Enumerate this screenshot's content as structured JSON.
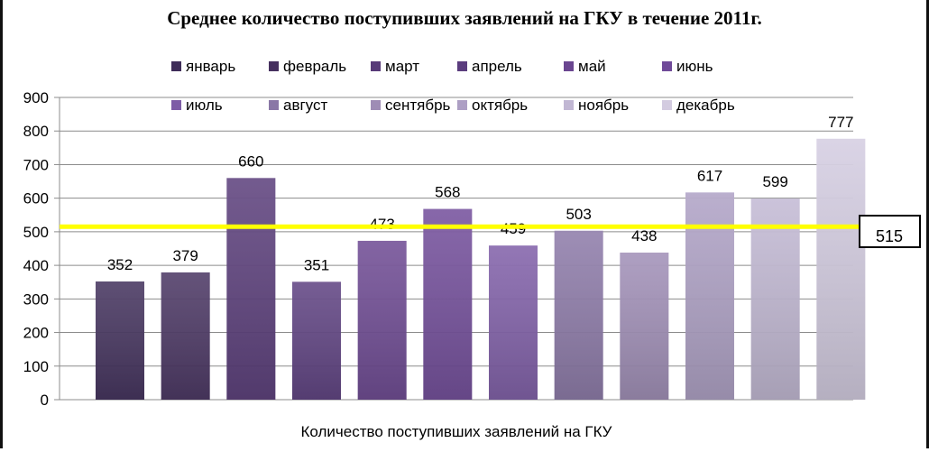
{
  "chart_data": {
    "type": "bar",
    "title": "Среднее количество поступивших заявлений на ГКУ в течение 2011г.",
    "xlabel": "Количество поступивших заявлений на ГКУ",
    "ylabel": "",
    "ylim": [
      0,
      900
    ],
    "yticks": [
      0,
      100,
      200,
      300,
      400,
      500,
      600,
      700,
      800,
      900
    ],
    "grid": true,
    "legend_position": "top",
    "series": [
      {
        "name": "январь",
        "value": 352,
        "color": "#3e2c58"
      },
      {
        "name": "февраль",
        "value": 379,
        "color": "#46305f"
      },
      {
        "name": "март",
        "value": 660,
        "color": "#573a78"
      },
      {
        "name": "апрель",
        "value": 351,
        "color": "#5b3d7e"
      },
      {
        "name": "май",
        "value": 473,
        "color": "#6a4690"
      },
      {
        "name": "июнь",
        "value": 568,
        "color": "#704a99"
      },
      {
        "name": "июль",
        "value": 459,
        "color": "#7d5ca6"
      },
      {
        "name": "август",
        "value": 503,
        "color": "#8a77a6"
      },
      {
        "name": "сентябрь",
        "value": 438,
        "color": "#9e8cb5"
      },
      {
        "name": "октябрь",
        "value": 617,
        "color": "#ad9fc4"
      },
      {
        "name": "ноябрь",
        "value": 599,
        "color": "#c1b7d3"
      },
      {
        "name": "декабрь",
        "value": 777,
        "color": "#d3cbe0"
      }
    ],
    "average": {
      "value": 515,
      "label": "515",
      "color": "#ffff00"
    }
  }
}
